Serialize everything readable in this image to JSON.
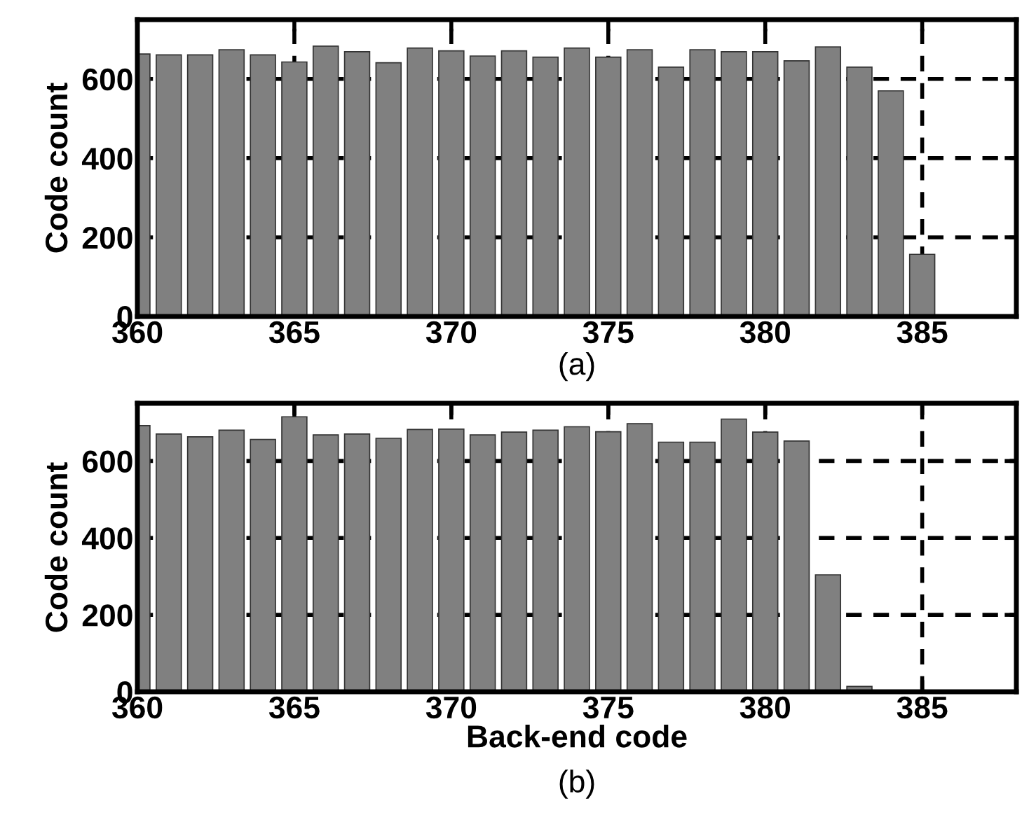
{
  "chart_data": [
    {
      "type": "bar",
      "ylabel": "Code count",
      "annotations": [
        "(a)"
      ],
      "color": "#808080",
      "grid": true,
      "x": [
        360,
        361,
        362,
        363,
        364,
        365,
        366,
        367,
        368,
        369,
        370,
        371,
        372,
        373,
        374,
        375,
        376,
        377,
        378,
        379,
        380,
        381,
        382,
        383,
        384,
        385
      ],
      "values": [
        663,
        661,
        661,
        674,
        661,
        643,
        683,
        669,
        641,
        678,
        671,
        658,
        671,
        655,
        678,
        655,
        674,
        630,
        674,
        669,
        669,
        646,
        681,
        630,
        570,
        157
      ],
      "xlim": [
        360,
        388
      ],
      "xticks": [
        360,
        365,
        370,
        375,
        380,
        385
      ],
      "ylim": [
        0,
        750
      ],
      "yticks": [
        0,
        200,
        400,
        600
      ]
    },
    {
      "type": "bar",
      "ylabel": "Code count",
      "xlabel": "Back-end code",
      "annotations": [
        "(b)"
      ],
      "color": "#808080",
      "grid": true,
      "x": [
        360,
        361,
        362,
        363,
        364,
        365,
        366,
        367,
        368,
        369,
        370,
        371,
        372,
        373,
        374,
        375,
        376,
        377,
        378,
        379,
        380,
        381,
        382,
        383
      ],
      "values": [
        692,
        670,
        663,
        680,
        656,
        715,
        668,
        670,
        659,
        682,
        683,
        668,
        675,
        680,
        689,
        676,
        697,
        649,
        649,
        709,
        675,
        652,
        304,
        14
      ],
      "xlim": [
        360,
        388
      ],
      "xticks": [
        360,
        365,
        370,
        375,
        380,
        385
      ],
      "ylim": [
        0,
        750
      ],
      "yticks": [
        0,
        200,
        400,
        600
      ]
    }
  ]
}
